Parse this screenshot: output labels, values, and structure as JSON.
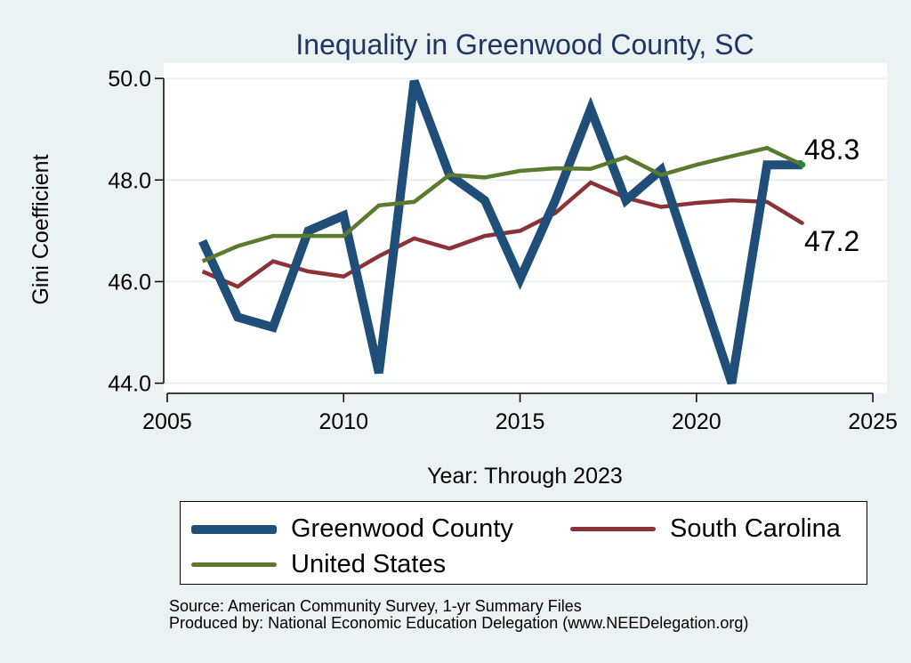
{
  "chart_data": {
    "type": "line",
    "title": "Inequality in Greenwood County, SC",
    "xlabel": "Year: Through 2023",
    "ylabel": "Gini Coefficient",
    "xlim": [
      2004.9,
      2025.4
    ],
    "ylim": [
      43.8,
      50.3
    ],
    "xticks": [
      2005,
      2010,
      2015,
      2020,
      2025
    ],
    "xtick_labels": [
      "2005",
      "2010",
      "2015",
      "2020",
      "2025"
    ],
    "yticks": [
      44,
      46,
      48,
      50
    ],
    "ytick_labels": [
      "44.0",
      "46.0",
      "48.0",
      "50.0"
    ],
    "grid": true,
    "x": [
      2006,
      2007,
      2008,
      2009,
      2010,
      2011,
      2012,
      2013,
      2014,
      2015,
      2016,
      2017,
      2018,
      2019,
      2020,
      2021,
      2022,
      2023
    ],
    "series": [
      {
        "name": "Greenwood County",
        "color": "#1f4e79",
        "values": [
          46.8,
          45.3,
          45.1,
          47.0,
          47.3,
          44.2,
          49.95,
          48.1,
          47.6,
          46.05,
          47.6,
          49.4,
          47.6,
          48.2,
          46.1,
          44.0,
          48.3,
          48.3
        ]
      },
      {
        "name": "South Carolina",
        "color": "#8b3236",
        "values": [
          46.2,
          45.9,
          46.4,
          46.2,
          46.1,
          46.5,
          46.85,
          46.65,
          46.9,
          47.0,
          47.35,
          47.95,
          47.65,
          47.47,
          47.55,
          47.6,
          47.57,
          47.15
        ]
      },
      {
        "name": "United States",
        "color": "#5a7a2e",
        "values": [
          46.4,
          46.7,
          46.9,
          46.9,
          46.9,
          47.5,
          47.57,
          48.1,
          48.05,
          48.18,
          48.23,
          48.22,
          48.45,
          48.1,
          48.3,
          48.47,
          48.63,
          48.3
        ]
      }
    ],
    "annotations": [
      "48.3",
      "47.2"
    ],
    "legend_position": "bottom",
    "notes": [
      "Source: American Community Survey, 1-yr Summary Files",
      "Produced by: National Economic Education Delegation (www.NEEDelegation.org)"
    ]
  }
}
